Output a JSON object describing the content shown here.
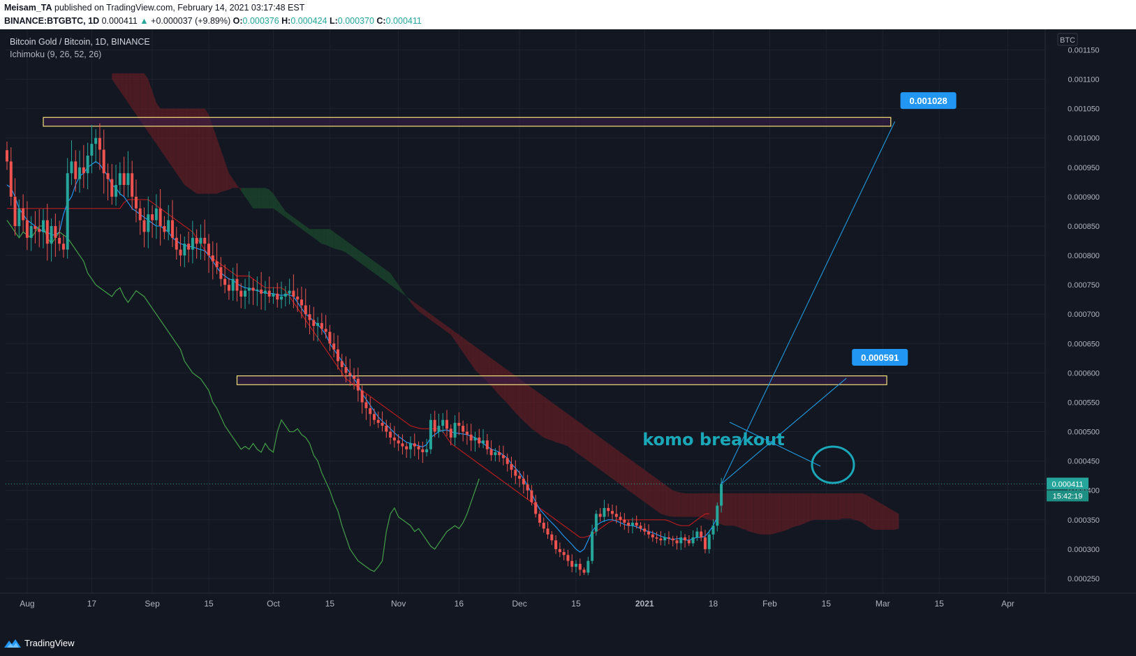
{
  "header": {
    "author": "Meisam_TA",
    "published_text": "published on TradingView.com, February 14, 2021 03:17:48 EST",
    "symbol": "BINANCE:BTGBTC, 1D",
    "last": "0.000411",
    "change": "+0.000037 (+9.89%)",
    "o_label": "O:",
    "o_value": "0.000376",
    "h_label": "H:",
    "h_value": "0.000424",
    "l_label": "L:",
    "l_value": "0.000370",
    "c_label": "C:",
    "c_value": "0.000411"
  },
  "legend": {
    "title": "Bitcoin Gold / Bitcoin, 1D, BINANCE",
    "indicator": "Ichimoku (9, 26, 52, 26)"
  },
  "footer": {
    "brand": "TradingView"
  },
  "colors": {
    "background": "#131722",
    "bull": "#26a69a",
    "bear": "#ef5350",
    "tenkan": "#2196f3",
    "kijun": "#b71c1c",
    "chikou": "#43a047",
    "cloud_bear": "#5d1e24",
    "cloud_bull": "#1b4a2c",
    "annotation": "#1e9be0",
    "zone_border": "#f5e07a",
    "zone_fill": "#3a1f4a",
    "label_bg": "#2196f3"
  },
  "chart_data": {
    "type": "candlestick",
    "y_axis_unit": "BTC",
    "ylim": [
      0.000225,
      0.001185
    ],
    "y_ticks": [
      "0.001150",
      "0.001100",
      "0.001050",
      "0.001000",
      "0.000950",
      "0.000900",
      "0.000850",
      "0.000800",
      "0.000750",
      "0.000700",
      "0.000650",
      "0.000600",
      "0.000550",
      "0.000500",
      "0.000450",
      "0.000400",
      "0.000350",
      "0.000300",
      "0.000250"
    ],
    "x_ticks": [
      {
        "label": "Aug",
        "date": "2020-08-01"
      },
      {
        "label": "17",
        "date": "2020-08-17"
      },
      {
        "label": "Sep",
        "date": "2020-09-01"
      },
      {
        "label": "15",
        "date": "2020-09-15"
      },
      {
        "label": "Oct",
        "date": "2020-10-01"
      },
      {
        "label": "15",
        "date": "2020-10-15"
      },
      {
        "label": "Nov",
        "date": "2020-11-01"
      },
      {
        "label": "16",
        "date": "2020-11-16"
      },
      {
        "label": "Dec",
        "date": "2020-12-01"
      },
      {
        "label": "15",
        "date": "2020-12-15"
      },
      {
        "label": "2021",
        "date": "2021-01-01"
      },
      {
        "label": "18",
        "date": "2021-01-18"
      },
      {
        "label": "Feb",
        "date": "2021-02-01"
      },
      {
        "label": "15",
        "date": "2021-02-15"
      },
      {
        "label": "Mar",
        "date": "2021-03-01"
      },
      {
        "label": "15",
        "date": "2021-03-15"
      },
      {
        "label": "Apr",
        "date": "2021-04-01"
      }
    ],
    "start_date": "2020-07-27",
    "close": [
      0.00096,
      0.0009,
      0.00085,
      0.00088,
      0.00086,
      0.00083,
      0.00085,
      0.000845,
      0.00084,
      0.00086,
      0.00082,
      0.00085,
      0.00083,
      0.00082,
      0.00081,
      0.00094,
      0.00096,
      0.00093,
      0.00095,
      0.00094,
      0.00097,
      0.00099,
      0.001,
      0.00098,
      0.00094,
      0.00093,
      0.0009,
      0.00092,
      0.00094,
      0.00092,
      0.00094,
      0.0009,
      0.00088,
      0.00086,
      0.00084,
      0.00087,
      0.00086,
      0.00088,
      0.00085,
      0.00084,
      0.00086,
      0.00083,
      0.00081,
      0.0008,
      0.00082,
      0.00081,
      0.00083,
      0.00082,
      0.00083,
      0.00082,
      0.0008,
      0.00079,
      0.00078,
      0.00076,
      0.00075,
      0.00074,
      0.00076,
      0.00074,
      0.00073,
      0.00074,
      0.000745,
      0.00074,
      0.000742,
      0.000735,
      0.00074,
      0.00073,
      0.000735,
      0.000725,
      0.00073,
      0.000735,
      0.00074,
      0.00073,
      0.000725,
      0.000715,
      0.0007,
      0.00069,
      0.00068,
      0.000685,
      0.000675,
      0.00067,
      0.00065,
      0.00064,
      0.00062,
      0.00061,
      0.0006,
      0.000595,
      0.00059,
      0.00057,
      0.00055,
      0.00054,
      0.00053,
      0.00052,
      0.000515,
      0.00051,
      0.0005,
      0.00049,
      0.000485,
      0.00048,
      0.000475,
      0.00047,
      0.00048,
      0.000475,
      0.00047,
      0.000465,
      0.00047,
      0.00052,
      0.0005,
      0.00051,
      0.00052,
      0.000505,
      0.00049,
      0.000515,
      0.00051,
      0.0005,
      0.000495,
      0.000485,
      0.00049,
      0.00048,
      0.000485,
      0.00047,
      0.00046,
      0.000465,
      0.00046,
      0.000455,
      0.000445,
      0.000435,
      0.000425,
      0.00042,
      0.00041,
      0.0004,
      0.00038,
      0.00036,
      0.000345,
      0.000335,
      0.000325,
      0.000315,
      0.0003,
      0.000295,
      0.00029,
      0.00028,
      0.00027,
      0.000275,
      0.000265,
      0.00026,
      0.00028,
      0.00033,
      0.00036,
      0.000355,
      0.00037,
      0.000365,
      0.00036,
      0.000355,
      0.00035,
      0.000345,
      0.00034,
      0.000345,
      0.00034,
      0.000335,
      0.00033,
      0.000325,
      0.00032,
      0.000318,
      0.000315,
      0.00032,
      0.000318,
      0.000315,
      0.00031,
      0.00032,
      0.000315,
      0.00031,
      0.00032,
      0.00033,
      0.00032,
      0.0003,
      0.000325,
      0.00034,
      0.000374,
      0.000411
    ],
    "tenkan": [
      0.00092,
      0.000915,
      0.0009,
      0.00088,
      0.00087,
      0.00086,
      0.000855,
      0.00085,
      0.000845,
      0.00084,
      0.00084,
      0.000835,
      0.000835,
      0.00084,
      0.00087,
      0.00089,
      0.0009,
      0.00092,
      0.000935,
      0.00094,
      0.00095,
      0.000955,
      0.00096,
      0.000955,
      0.000945,
      0.000935,
      0.00092,
      0.000915,
      0.000905,
      0.0009,
      0.00089,
      0.00088,
      0.000875,
      0.00087,
      0.000865,
      0.00086,
      0.000855,
      0.00085,
      0.00085,
      0.000845,
      0.00084,
      0.00083,
      0.000825,
      0.00082,
      0.000818,
      0.000815,
      0.000815,
      0.000812,
      0.00081,
      0.000808,
      0.0008,
      0.00079,
      0.00078,
      0.00077,
      0.000765,
      0.00076,
      0.000758,
      0.000752,
      0.000748,
      0.000745,
      0.000744,
      0.000742,
      0.00074,
      0.000738,
      0.000736,
      0.000735,
      0.000735,
      0.000733,
      0.000732,
      0.000733,
      0.000733,
      0.00073,
      0.00072,
      0.00071,
      0.0007,
      0.000695,
      0.000688,
      0.000682,
      0.000675,
      0.000665,
      0.00065,
      0.00064,
      0.00063,
      0.00062,
      0.00061,
      0.0006,
      0.00059,
      0.00058,
      0.000565,
      0.000555,
      0.000545,
      0.000535,
      0.000525,
      0.000518,
      0.000512,
      0.000505,
      0.000498,
      0.000492,
      0.000487,
      0.000482,
      0.00048,
      0.000478,
      0.000476,
      0.000474,
      0.000478,
      0.00049,
      0.000495,
      0.0005,
      0.000502,
      0.000503,
      0.0005,
      0.000498,
      0.000497,
      0.000496,
      0.000495,
      0.000492,
      0.00049,
      0.000485,
      0.00048,
      0.000475,
      0.00047,
      0.000468,
      0.000465,
      0.00046,
      0.000455,
      0.000445,
      0.000438,
      0.00043,
      0.00042,
      0.000408,
      0.000395,
      0.00038,
      0.000368,
      0.00036,
      0.000352,
      0.000345,
      0.000338,
      0.00033,
      0.000322,
      0.000315,
      0.000308,
      0.0003,
      0.000295,
      0.0003,
      0.000315,
      0.00033,
      0.00034,
      0.000345,
      0.000348,
      0.00035,
      0.00035,
      0.000348,
      0.000345,
      0.000342,
      0.00034,
      0.00034,
      0.000338,
      0.000335,
      0.000332,
      0.00033,
      0.000328,
      0.000325,
      0.000322,
      0.00032,
      0.000318,
      0.000316,
      0.000318,
      0.000318,
      0.000316,
      0.000315,
      0.000318,
      0.00032,
      0.00032,
      0.000322,
      0.00033,
      0.00034,
      0.000355
    ],
    "kijun": [
      0.00088,
      0.00088,
      0.00088,
      0.00088,
      0.00088,
      0.00088,
      0.00088,
      0.00088,
      0.00088,
      0.00088,
      0.00088,
      0.00088,
      0.00088,
      0.00088,
      0.00088,
      0.00088,
      0.00088,
      0.00088,
      0.00088,
      0.00088,
      0.00088,
      0.00088,
      0.00088,
      0.00088,
      0.00088,
      0.00088,
      0.00088,
      0.00088,
      0.00088,
      0.00089,
      0.000895,
      0.000895,
      0.000895,
      0.000895,
      0.000895,
      0.000895,
      0.00089,
      0.000885,
      0.00088,
      0.000875,
      0.00087,
      0.000865,
      0.00086,
      0.000855,
      0.00085,
      0.000845,
      0.00084,
      0.00083,
      0.00082,
      0.00081,
      0.0008,
      0.000795,
      0.00079,
      0.000785,
      0.00078,
      0.000775,
      0.00077,
      0.000765,
      0.000765,
      0.000765,
      0.000765,
      0.00076,
      0.000755,
      0.00075,
      0.000745,
      0.000745,
      0.000745,
      0.000745,
      0.000745,
      0.00074,
      0.00073,
      0.00072,
      0.00071,
      0.0007,
      0.00069,
      0.00068,
      0.00067,
      0.00066,
      0.00065,
      0.00064,
      0.00063,
      0.00062,
      0.00061,
      0.0006,
      0.00059,
      0.000585,
      0.00058,
      0.000575,
      0.00057,
      0.000565,
      0.00056,
      0.000555,
      0.00055,
      0.000545,
      0.00054,
      0.000535,
      0.00053,
      0.000525,
      0.00052,
      0.000515,
      0.00051,
      0.000508,
      0.000506,
      0.000505,
      0.000505,
      0.000505,
      0.000505,
      0.000505,
      0.0005,
      0.00049,
      0.00048,
      0.000475,
      0.00047,
      0.000465,
      0.00046,
      0.000455,
      0.00045,
      0.000445,
      0.00044,
      0.000435,
      0.00043,
      0.000425,
      0.00042,
      0.000415,
      0.00041,
      0.000405,
      0.0004,
      0.000395,
      0.00039,
      0.000385,
      0.00038,
      0.000375,
      0.00037,
      0.000365,
      0.00036,
      0.000355,
      0.00035,
      0.000345,
      0.00034,
      0.000335,
      0.00033,
      0.000325,
      0.00032,
      0.00032,
      0.000322,
      0.000325,
      0.00033,
      0.000335,
      0.00034,
      0.000345,
      0.000348,
      0.00035,
      0.00035,
      0.00035,
      0.00035,
      0.00035,
      0.00035,
      0.00035,
      0.00035,
      0.00035,
      0.00035,
      0.00035,
      0.00035,
      0.00035,
      0.000348,
      0.000345,
      0.000342,
      0.00034,
      0.00034,
      0.00034,
      0.000345,
      0.00035,
      0.000355,
      0.00036,
      0.00036
    ],
    "chikou": [
      0.00086,
      0.00085,
      0.00084,
      0.00083,
      0.00084,
      0.000835,
      0.00083,
      0.00084,
      0.00085,
      0.00085,
      0.00083,
      0.00082,
      0.00083,
      0.00084,
      0.000835,
      0.00083,
      0.00082,
      0.00081,
      0.0008,
      0.00079,
      0.00077,
      0.00076,
      0.00075,
      0.000745,
      0.00074,
      0.000735,
      0.00073,
      0.00074,
      0.000745,
      0.00073,
      0.00072,
      0.00073,
      0.00074,
      0.000735,
      0.00073,
      0.00072,
      0.00071,
      0.0007,
      0.00069,
      0.00068,
      0.00067,
      0.00066,
      0.00065,
      0.00064,
      0.00062,
      0.00061,
      0.0006,
      0.000595,
      0.00059,
      0.00058,
      0.00057,
      0.00055,
      0.00054,
      0.000525,
      0.00051,
      0.0005,
      0.00049,
      0.00048,
      0.00047,
      0.000475,
      0.00047,
      0.00048,
      0.00047,
      0.000465,
      0.00048,
      0.00047,
      0.000465,
      0.0005,
      0.00052,
      0.00051,
      0.0005,
      0.0005,
      0.000505,
      0.000495,
      0.00049,
      0.00048,
      0.00046,
      0.00045,
      0.00043,
      0.000415,
      0.0004,
      0.00038,
      0.000365,
      0.00034,
      0.00032,
      0.0003,
      0.00029,
      0.00028,
      0.000275,
      0.00027,
      0.000265,
      0.000262,
      0.00027,
      0.00028,
      0.00033,
      0.00036,
      0.00037,
      0.000355,
      0.00035,
      0.000345,
      0.00034,
      0.00033,
      0.000335,
      0.000325,
      0.000315,
      0.000305,
      0.0003,
      0.00031,
      0.00032,
      0.00033,
      0.000335,
      0.00034,
      0.000335,
      0.000345,
      0.00036,
      0.00038,
      0.0004,
      0.00042
    ],
    "span_a": [
      0.0011,
      0.00109,
      0.00108,
      0.00107,
      0.00106,
      0.00105,
      0.00104,
      0.00103,
      0.00102,
      0.00101,
      0.001,
      0.00099,
      0.00098,
      0.00097,
      0.00096,
      0.00095,
      0.00094,
      0.00093,
      0.00092,
      0.000915,
      0.00091,
      0.000905,
      0.000905,
      0.000905,
      0.000905,
      0.000905,
      0.000905,
      0.000908,
      0.00091,
      0.000912,
      0.000915,
      0.000915,
      0.000915,
      0.000915,
      0.000915,
      0.000915,
      0.000915,
      0.000915,
      0.000915,
      0.000912,
      0.000905,
      0.000895,
      0.000885,
      0.000875,
      0.00087,
      0.000865,
      0.00086,
      0.000855,
      0.00085,
      0.000845,
      0.000845,
      0.000845,
      0.000845,
      0.000845,
      0.000845,
      0.00084,
      0.000835,
      0.00083,
      0.000825,
      0.00082,
      0.000815,
      0.00081,
      0.000805,
      0.0008,
      0.000795,
      0.00079,
      0.000785,
      0.00078,
      0.000775,
      0.00077,
      0.00076,
      0.00075,
      0.00074,
      0.00073,
      0.00072,
      0.000712,
      0.000705,
      0.0007,
      0.000695,
      0.00069,
      0.000685,
      0.00068,
      0.000675,
      0.00067,
      0.000665,
      0.000655,
      0.000645,
      0.000635,
      0.000625,
      0.000615,
      0.000605,
      0.000598,
      0.000592,
      0.000585,
      0.000578,
      0.00057,
      0.000562,
      0.000555,
      0.000548,
      0.00054,
      0.000532,
      0.000525,
      0.000518,
      0.000512,
      0.000505,
      0.0005,
      0.000495,
      0.00049,
      0.000487,
      0.000485,
      0.000482,
      0.00048,
      0.000478,
      0.000475,
      0.00047,
      0.000465,
      0.00046,
      0.000455,
      0.00045,
      0.000445,
      0.00044,
      0.000435,
      0.00043,
      0.000425,
      0.00042,
      0.000415,
      0.00041,
      0.000405,
      0.0004,
      0.000395,
      0.00039,
      0.000385,
      0.00038,
      0.000375,
      0.00037,
      0.000365,
      0.00036,
      0.000358,
      0.000356,
      0.000355,
      0.000355,
      0.000355,
      0.000355,
      0.000355,
      0.000355,
      0.000355,
      0.000355,
      0.000352,
      0.00035,
      0.000348,
      0.000345,
      0.000342,
      0.00034,
      0.00034,
      0.00034,
      0.000338,
      0.000335,
      0.000333,
      0.00033,
      0.000328,
      0.000326,
      0.000325,
      0.000325,
      0.000325,
      0.000326,
      0.000328,
      0.00033,
      0.000332,
      0.000335,
      0.000338,
      0.00034,
      0.000342,
      0.000345,
      0.000348,
      0.00035,
      0.00035,
      0.00035,
      0.00035,
      0.00035,
      0.00035,
      0.00035,
      0.000352,
      0.000352,
      0.000352,
      0.00035,
      0.000348,
      0.000345,
      0.00034,
      0.000335,
      0.000333,
      0.000333,
      0.000333,
      0.000333,
      0.000333,
      0.000333,
      0.000335
    ],
    "span_b": [
      0.00111,
      0.00111,
      0.00111,
      0.00111,
      0.00111,
      0.00111,
      0.00111,
      0.00111,
      0.00111,
      0.0011,
      0.00108,
      0.00106,
      0.00105,
      0.00105,
      0.00105,
      0.00105,
      0.00105,
      0.00105,
      0.00105,
      0.00105,
      0.00105,
      0.00105,
      0.00105,
      0.00105,
      0.00104,
      0.00102,
      0.001,
      0.00098,
      0.00096,
      0.00094,
      0.00093,
      0.00092,
      0.00091,
      0.0009,
      0.00089,
      0.00088,
      0.00088,
      0.00088,
      0.00088,
      0.00088,
      0.00088,
      0.000875,
      0.00087,
      0.000865,
      0.00086,
      0.000855,
      0.00085,
      0.000845,
      0.00084,
      0.000835,
      0.00083,
      0.000825,
      0.00082,
      0.000818,
      0.000815,
      0.000812,
      0.00081,
      0.000808,
      0.000805,
      0.0008,
      0.000795,
      0.00079,
      0.000785,
      0.00078,
      0.000775,
      0.00077,
      0.000765,
      0.00076,
      0.000755,
      0.00075,
      0.000745,
      0.00074,
      0.000735,
      0.00073,
      0.000725,
      0.00072,
      0.000715,
      0.00071,
      0.000705,
      0.0007,
      0.000695,
      0.00069,
      0.000685,
      0.00068,
      0.000675,
      0.00067,
      0.000665,
      0.00066,
      0.000655,
      0.00065,
      0.000645,
      0.00064,
      0.000635,
      0.00063,
      0.000625,
      0.00062,
      0.000615,
      0.00061,
      0.000605,
      0.0006,
      0.000595,
      0.00059,
      0.000585,
      0.00058,
      0.000575,
      0.00057,
      0.000565,
      0.00056,
      0.000555,
      0.00055,
      0.000545,
      0.00054,
      0.000535,
      0.00053,
      0.000525,
      0.00052,
      0.000515,
      0.00051,
      0.000505,
      0.0005,
      0.000495,
      0.00049,
      0.000485,
      0.00048,
      0.000475,
      0.00047,
      0.000465,
      0.00046,
      0.000455,
      0.00045,
      0.000445,
      0.00044,
      0.000435,
      0.00043,
      0.000425,
      0.00042,
      0.000415,
      0.00041,
      0.000405,
      0.0004,
      0.000398,
      0.000396,
      0.000395,
      0.000395,
      0.000395,
      0.000395,
      0.000395,
      0.000395,
      0.000395,
      0.000395,
      0.000395,
      0.000395,
      0.000395,
      0.000395,
      0.000395,
      0.000395,
      0.000395,
      0.000395,
      0.000395,
      0.000395,
      0.000395,
      0.000395,
      0.000395,
      0.000395,
      0.000395,
      0.000395,
      0.000395,
      0.000395,
      0.000395,
      0.000395,
      0.000395,
      0.000395,
      0.000395,
      0.000395,
      0.000395,
      0.000395,
      0.000395,
      0.000395,
      0.000395,
      0.000395,
      0.000395,
      0.000395,
      0.000395,
      0.000395,
      0.000395,
      0.000395,
      0.000395,
      0.000392,
      0.000388,
      0.000384,
      0.00038,
      0.000376,
      0.000372,
      0.000368,
      0.000364,
      0.00036,
      0.000356,
      0.000352,
      0.000348,
      0.000344,
      0.00034,
      0.000336,
      0.000334,
      0.000334
    ],
    "zones": [
      {
        "from": "2020-08-05",
        "to": "2021-03-03",
        "low": 0.00102,
        "high": 0.001035
      },
      {
        "from": "2020-09-22",
        "to": "2021-03-02",
        "low": 0.00058,
        "high": 0.000595
      }
    ],
    "labels": [
      {
        "text": "0.001028",
        "date": "2021-03-04",
        "value": 0.001028
      },
      {
        "text": "0.000591",
        "date": "2021-02-20",
        "value": 0.000591
      }
    ],
    "annotation_text": "komo breakout",
    "current_price": "0.000411",
    "countdown": "15:42:19",
    "axis_currency": "BTC"
  }
}
